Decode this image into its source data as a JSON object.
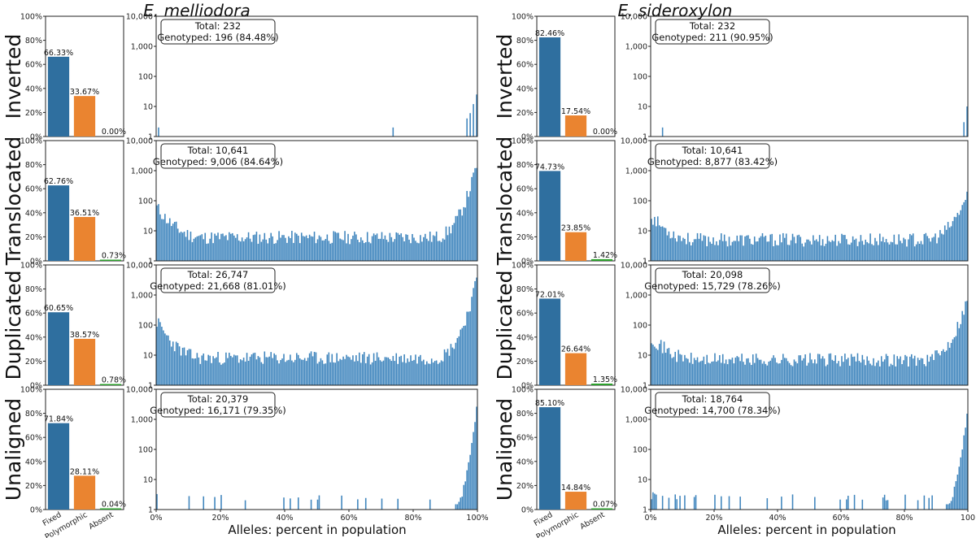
{
  "species_titles": [
    "E. melliodora",
    "E. sideroxylon"
  ],
  "row_labels": [
    "Inverted",
    "Translocated",
    "Duplicated",
    "Unaligned"
  ],
  "xlabel": "Alleles: percent in population",
  "colors": {
    "fixed": "#2f6f9f",
    "polymorphic": "#ea8430",
    "absent": "#2ca02c",
    "hist": "#3f85bd"
  },
  "chart_data": [
    {
      "type": "bar",
      "species": "E. melliodora",
      "bar_categories": [
        "Fixed",
        "Polymorphic",
        "Absent"
      ],
      "bar_yticks": [
        "0%",
        "20%",
        "40%",
        "60%",
        "80%",
        "100%"
      ],
      "hist_yscale": "log",
      "hist_yticks": [
        "1",
        "10",
        "100",
        "1,000",
        "10,000"
      ],
      "hist_xticks": [
        "0%",
        "20%",
        "40%",
        "60%",
        "80%",
        "100%"
      ],
      "rows": [
        {
          "name": "Inverted",
          "bars": [
            66.33,
            33.67,
            0.0
          ],
          "bar_labels": [
            "66.33%",
            "33.67%",
            "0.00%"
          ],
          "total": "Total: 232",
          "genotyped": "Genotyped: 196 (84.48%)",
          "hist": {
            "kind": "sparse",
            "spikes": [
              [
                0.5,
                2
              ],
              [
                74,
                2
              ],
              [
                97,
                4
              ],
              [
                98,
                6
              ],
              [
                99,
                12
              ],
              [
                100,
                25
              ]
            ]
          }
        },
        {
          "name": "Translocated",
          "bars": [
            62.76,
            36.51,
            0.73
          ],
          "bar_labels": [
            "62.76%",
            "36.51%",
            "0.73%"
          ],
          "total": "Total: 10,641",
          "genotyped": "Genotyped: 9,006 (84.64%)",
          "hist": {
            "kind": "ushape",
            "start": 60,
            "mid": 6,
            "end": 1500,
            "seed": 11
          }
        },
        {
          "name": "Duplicated",
          "bars": [
            60.65,
            38.57,
            0.78
          ],
          "bar_labels": [
            "60.65%",
            "38.57%",
            "0.78%"
          ],
          "total": "Total: 26,747",
          "genotyped": "Genotyped: 21,668 (81.01%)",
          "hist": {
            "kind": "ushape",
            "start": 130,
            "mid": 8,
            "end": 3000,
            "seed": 23
          }
        },
        {
          "name": "Unaligned",
          "bars": [
            71.84,
            28.11,
            0.04
          ],
          "bar_labels": [
            "71.84%",
            "28.11%",
            "0.04%"
          ],
          "total": "Total: 20,379",
          "genotyped": "Genotyped: 16,171 (79.35%)",
          "hist": {
            "kind": "sparse_tail",
            "seed": 37,
            "end": 2500
          }
        }
      ]
    },
    {
      "type": "bar",
      "species": "E. sideroxylon",
      "bar_categories": [
        "Fixed",
        "Polymorphic",
        "Absent"
      ],
      "bar_yticks": [
        "0%",
        "20%",
        "40%",
        "60%",
        "80%",
        "100%"
      ],
      "hist_yscale": "log",
      "hist_yticks": [
        "1",
        "10",
        "100",
        "1,000",
        "10,000"
      ],
      "hist_xticks": [
        "0%",
        "20%",
        "40%",
        "60%",
        "80%",
        "100"
      ],
      "rows": [
        {
          "name": "Inverted",
          "bars": [
            82.46,
            17.54,
            0.0
          ],
          "bar_labels": [
            "82.46%",
            "17.54%",
            "0.00%"
          ],
          "total": "Total: 232",
          "genotyped": "Genotyped: 211 (90.95%)",
          "hist": {
            "kind": "sparse",
            "spikes": [
              [
                3.5,
                2
              ],
              [
                99,
                3
              ],
              [
                100,
                10
              ]
            ]
          }
        },
        {
          "name": "Translocated",
          "bars": [
            74.73,
            23.85,
            1.42
          ],
          "bar_labels": [
            "74.73%",
            "23.85%",
            "1.42%"
          ],
          "total": "Total: 10,641",
          "genotyped": "Genotyped: 8,877 (83.42%)",
          "hist": {
            "kind": "ushape",
            "start": 30,
            "mid": 5,
            "end": 150,
            "seed": 53
          }
        },
        {
          "name": "Duplicated",
          "bars": [
            72.01,
            26.64,
            1.35
          ],
          "bar_labels": [
            "72.01%",
            "26.64%",
            "1.35%"
          ],
          "total": "Total: 20,098",
          "genotyped": "Genotyped: 15,729 (78.26%)",
          "hist": {
            "kind": "ushape",
            "start": 40,
            "mid": 7,
            "end": 700,
            "seed": 71
          }
        },
        {
          "name": "Unaligned",
          "bars": [
            85.1,
            14.84,
            0.07
          ],
          "bar_labels": [
            "85.10%",
            "14.84%",
            "0.07%"
          ],
          "total": "Total: 18,764",
          "genotyped": "Genotyped: 14,700 (78.34%)",
          "hist": {
            "kind": "sparse_tail",
            "seed": 89,
            "end": 1500
          }
        }
      ]
    }
  ]
}
